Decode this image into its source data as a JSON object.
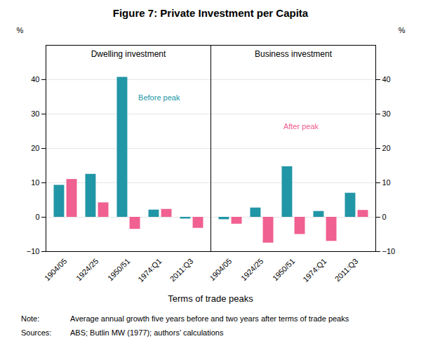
{
  "chart_data": [
    {
      "type": "bar",
      "title": "Figure 7: Private Investment per Capita",
      "subtitle": "Dwelling investment",
      "xlabel": "Terms of trade peaks",
      "ylabel": "%",
      "categories": [
        "1904/05",
        "1924/25",
        "1950/51",
        "1974:Q1",
        "2011:Q3"
      ],
      "series": [
        {
          "color": "#2196A6",
          "values": [
            9.3,
            12.5,
            40.7,
            2.1,
            -0.5
          ]
        },
        {
          "color": "#F06090",
          "values": [
            11.0,
            4.2,
            -3.5,
            2.3,
            -3.2
          ]
        }
      ],
      "ylim": [
        -10,
        50
      ],
      "yticks": [
        -10,
        0,
        10,
        20,
        30,
        40
      ],
      "grid": true,
      "annotations": [
        {
          "text": "Before peak",
          "color": "#2196A6"
        }
      ],
      "notes": [
        {
          "label": "Note:",
          "text": "Average annual growth five years before and two years after terms of trade peaks"
        },
        {
          "label": "Sources:",
          "text": "ABS; Butlin MW (1977); authors’ calculations"
        }
      ]
    },
    {
      "type": "bar",
      "subtitle": "Business investment",
      "y2label": "%",
      "categories": [
        "1904/05",
        "1924/25",
        "1950/51",
        "1974:Q1",
        "2011:Q3"
      ],
      "series": [
        {
          "color": "#2196A6",
          "values": [
            -0.7,
            2.7,
            14.7,
            1.7,
            7.0
          ],
          "axis": "y2"
        },
        {
          "color": "#F06090",
          "values": [
            -2.0,
            -7.5,
            -5.0,
            -7.0,
            2.0
          ],
          "axis": "y2"
        }
      ],
      "y2lim": [
        -10,
        50
      ],
      "y2ticks": [
        -10,
        0,
        10,
        20,
        30,
        40
      ],
      "grid": true,
      "annotations": [
        {
          "text": "After peak",
          "color": "#F06090"
        }
      ]
    }
  ]
}
